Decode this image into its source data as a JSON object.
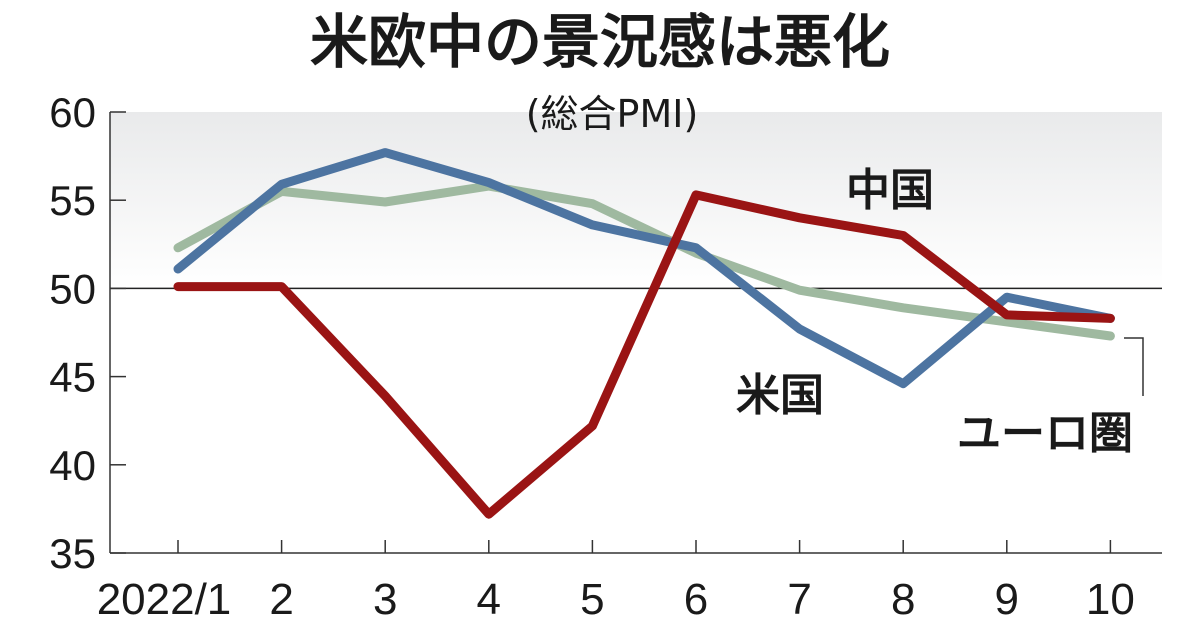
{
  "chart_data": {
    "type": "line",
    "title": "米欧中の景況感は悪化",
    "subtitle": "(総合PMI)",
    "categories": [
      "2022/1",
      "2",
      "3",
      "4",
      "5",
      "6",
      "7",
      "8",
      "9",
      "10"
    ],
    "ylim": [
      35,
      60
    ],
    "yticks": [
      "35",
      "40",
      "45",
      "50",
      "55",
      "60"
    ],
    "reference_line": 50,
    "grid": false,
    "series": [
      {
        "name": "ユーロ圏",
        "color": "#9fb9a0",
        "values": [
          52.3,
          55.5,
          54.9,
          55.8,
          54.8,
          52.0,
          49.9,
          48.9,
          48.1,
          47.3
        ]
      },
      {
        "name": "米国",
        "color": "#4d74a1",
        "values": [
          51.1,
          55.9,
          57.7,
          56.0,
          53.6,
          52.3,
          47.7,
          44.6,
          49.5,
          48.3
        ]
      },
      {
        "name": "中国",
        "color": "#9a1414",
        "values": [
          50.1,
          50.1,
          43.9,
          37.2,
          42.2,
          55.3,
          54.0,
          53.0,
          48.5,
          48.3
        ]
      }
    ]
  }
}
